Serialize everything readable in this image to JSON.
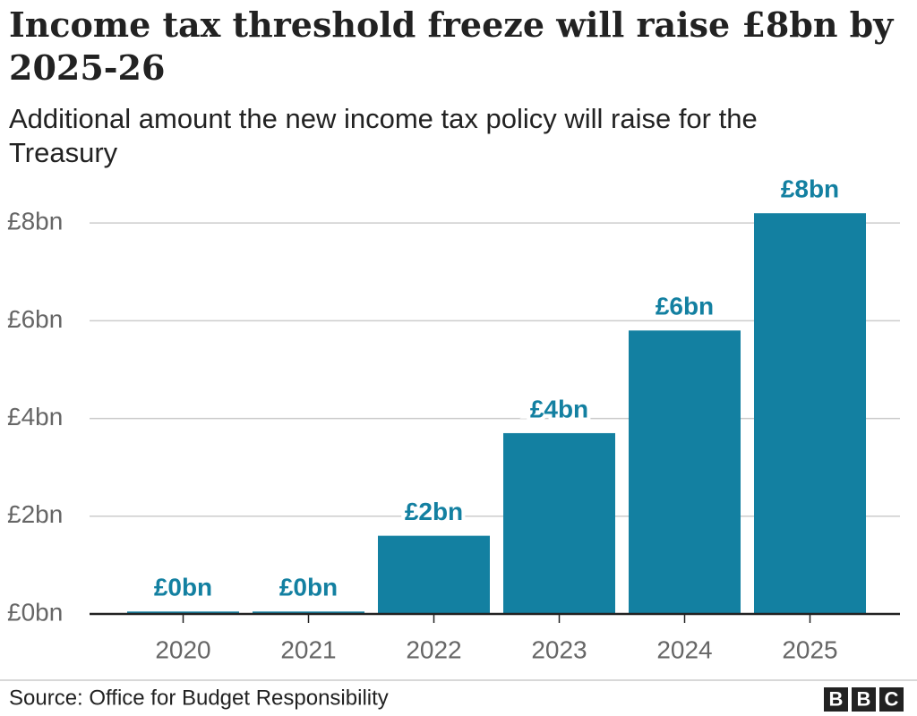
{
  "chart_data": {
    "type": "bar",
    "title": "Income tax threshold freeze will raise £8bn by 2025-26",
    "subtitle": "Additional amount the new income tax policy will raise for the Treasury",
    "categories": [
      "2020",
      "2021",
      "2022",
      "2023",
      "2024",
      "2025"
    ],
    "values": [
      0.05,
      0.05,
      1.6,
      3.7,
      5.8,
      8.2
    ],
    "value_labels": [
      "£0bn",
      "£0bn",
      "£2bn",
      "£4bn",
      "£6bn",
      "£8bn"
    ],
    "color": "#1380a1",
    "ylim": [
      0,
      8.9
    ],
    "yticks": [
      {
        "value": 0,
        "label": "£0bn"
      },
      {
        "value": 2,
        "label": "£2bn"
      },
      {
        "value": 4,
        "label": "£4bn"
      },
      {
        "value": 6,
        "label": "£6bn"
      },
      {
        "value": 8,
        "label": "£8bn"
      }
    ],
    "grid": true,
    "source": "Source: Office for Budget Responsibility",
    "logo": [
      "B",
      "B",
      "C"
    ]
  }
}
